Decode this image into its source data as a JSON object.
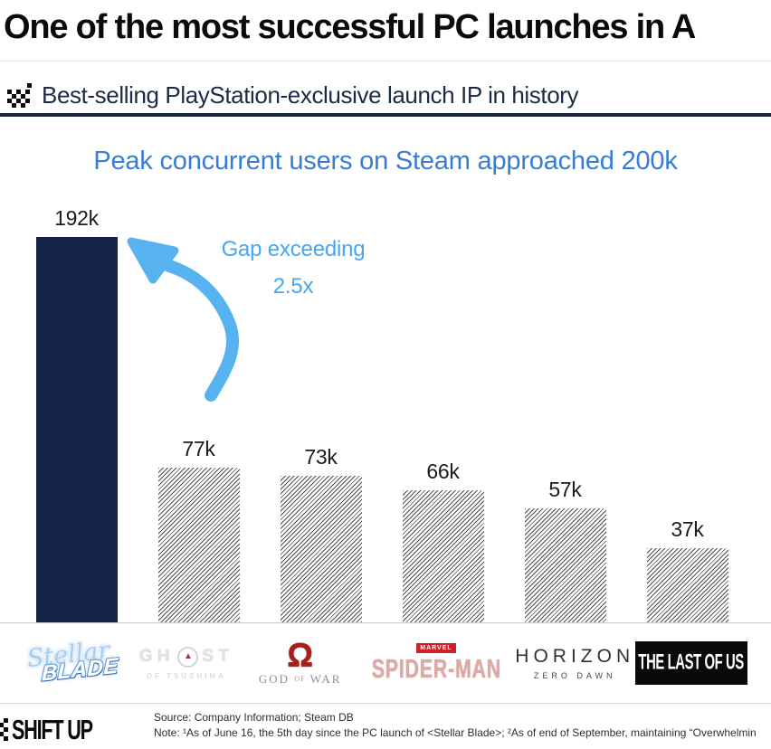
{
  "slide": {
    "title": "One of the most successful PC launches in A"
  },
  "section_header": {
    "icon": "checkered-flag-mark",
    "text": "Best-selling PlayStation-exclusive launch IP in history"
  },
  "chart_data": {
    "type": "bar",
    "title": "Peak concurrent users on Steam approached 200k",
    "categories": [
      "Stellar Blade",
      "Ghost of Tsushima",
      "God of War",
      "Marvel's Spider-Man",
      "Horizon Zero Dawn",
      "The Last of Us"
    ],
    "values": [
      192,
      77,
      73,
      66,
      57,
      37
    ],
    "value_labels": [
      "192k",
      "77k",
      "73k",
      "66k",
      "57k",
      "37k"
    ],
    "unit": "thousand peak concurrent Steam users",
    "ylim": [
      0,
      200
    ],
    "grid": false,
    "legend_position": "none",
    "highlight_index": 0,
    "annotation": {
      "line1": "Gap exceeding",
      "line2": "2.5x"
    }
  },
  "logos": {
    "stellar_blade": {
      "script": "Stellar",
      "main": "BLADE"
    },
    "ghost_of_tsushima": {
      "left": "GH",
      "right": "ST",
      "mon": "▲",
      "sub": "OF TSUSHIMA"
    },
    "god_of_war": {
      "symbol": "Ω",
      "word1": "GOD",
      "of": "OF",
      "word2": "WAR"
    },
    "spider_man": {
      "badge": "MARVEL",
      "main": "SPIDER-MAN"
    },
    "horizon": {
      "main": "HORIZON",
      "sub": "ZERO DAWN"
    },
    "last_of_us": {
      "main": "THE LAST OF US"
    }
  },
  "footer": {
    "brand": "SHIFT UP",
    "source": "Source: Company Information; Steam DB",
    "note": "Note: ¹As of June 16, the 5th day since the PC launch of <Stellar Blade>; ²As of end of September, maintaining “Overwhelmin"
  },
  "colors": {
    "navy": "#152348",
    "accent_blue": "#377dd5",
    "light_blue": "#56b3f0",
    "hatch_gray": "#4d4d4b",
    "marvel_red": "#ce2127",
    "gow_red": "#a81f1c",
    "tlou_black": "#0a0a0a"
  }
}
